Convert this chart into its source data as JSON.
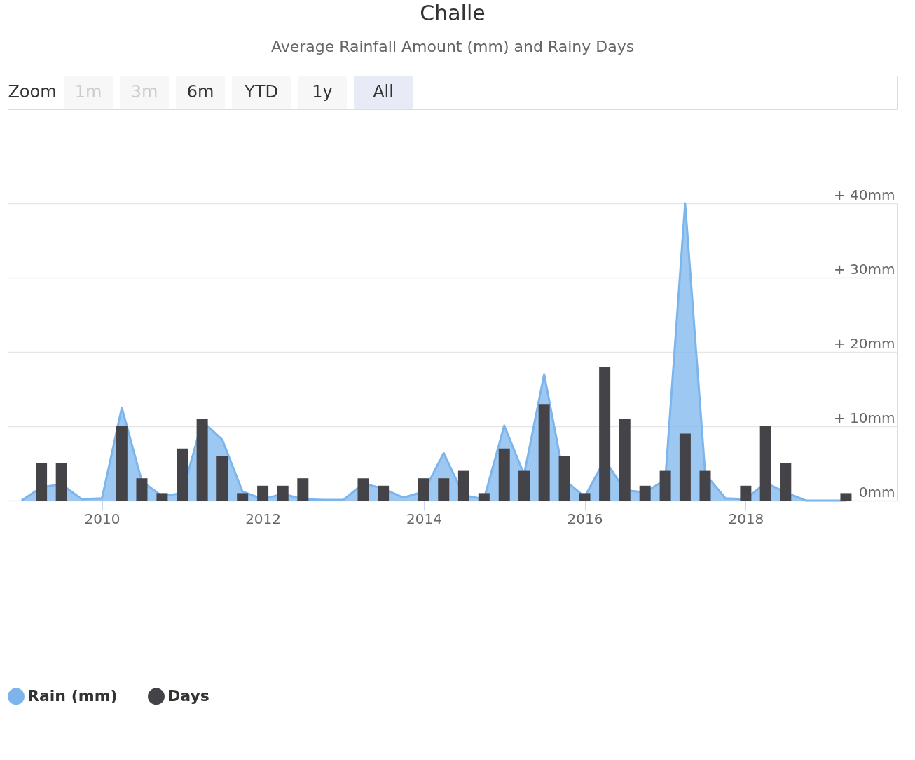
{
  "chart_data": {
    "type": "area",
    "title": "Challe",
    "subtitle": "Average Rainfall Amount (mm) and Rainy Days",
    "annotations": [
      "Zoom",
      "1m",
      "3m",
      "6m",
      "YTD",
      "1y",
      "All"
    ],
    "x": [
      "2009-01",
      "2009-04",
      "2009-07",
      "2009-10",
      "2010-01",
      "2010-04",
      "2010-07",
      "2010-10",
      "2011-01",
      "2011-04",
      "2011-07",
      "2011-10",
      "2012-01",
      "2012-04",
      "2012-07",
      "2012-10",
      "2013-01",
      "2013-04",
      "2013-07",
      "2013-10",
      "2014-01",
      "2014-04",
      "2014-07",
      "2014-10",
      "2015-01",
      "2015-04",
      "2015-07",
      "2015-10",
      "2016-01",
      "2016-04",
      "2016-07",
      "2016-10",
      "2017-01",
      "2017-04",
      "2017-07",
      "2017-10",
      "2018-01",
      "2018-04",
      "2018-07",
      "2018-10",
      "2019-01",
      "2019-04"
    ],
    "series": [
      {
        "name": "Rain (mm)",
        "color": "#7cb5ec",
        "values": [
          0,
          1.8,
          2.2,
          0.2,
          0.3,
          12.5,
          2.6,
          0.6,
          1,
          10.7,
          8.2,
          1.2,
          0.2,
          0.9,
          0.2,
          0.1,
          0.1,
          2.3,
          1.6,
          0.4,
          1.2,
          6.4,
          0.7,
          0.2,
          10.1,
          3.5,
          17,
          2.8,
          0.5,
          5.5,
          1.4,
          1.1,
          2.8,
          40,
          3.6,
          0.3,
          0.2,
          2.4,
          1.1,
          0,
          0,
          0
        ]
      },
      {
        "name": "Days",
        "type": "bar",
        "color": "#434348",
        "values": [
          null,
          5,
          5,
          null,
          null,
          10,
          3,
          1,
          7,
          11,
          6,
          1,
          2,
          2,
          3,
          null,
          null,
          3,
          2,
          null,
          3,
          3,
          4,
          1,
          7,
          4,
          13,
          6,
          1,
          18,
          11,
          2,
          4,
          9,
          4,
          null,
          2,
          10,
          5,
          null,
          null,
          1
        ]
      }
    ],
    "xlim": [
      "2008-11-15",
      "2019-11-05"
    ],
    "xticks": [
      "2010",
      "2012",
      "2014",
      "2016",
      "2018"
    ],
    "ylim": [
      0,
      40
    ],
    "yticks": [
      {
        "value": 0,
        "label": "0mm"
      },
      {
        "value": 10,
        "label": "+ 10mm"
      },
      {
        "value": 20,
        "label": "+ 20mm"
      },
      {
        "value": 30,
        "label": "+ 30mm"
      },
      {
        "value": 40,
        "label": "+ 40mm"
      }
    ],
    "grid": "y",
    "legend": "bottom"
  }
}
